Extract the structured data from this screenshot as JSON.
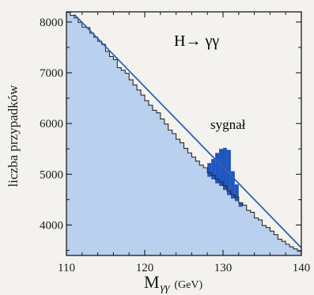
{
  "chart_data": {
    "type": "area",
    "title": "H→ γγ",
    "xlabel": "M",
    "xlabel_subscript": "γγ",
    "xlabel_unit": "(GeV)",
    "ylabel": "liczba przypadków",
    "xlim": [
      110,
      140
    ],
    "ylim": [
      3400,
      8200
    ],
    "x_ticks": [
      110,
      120,
      130,
      140
    ],
    "y_ticks": [
      4000,
      5000,
      6000,
      7000,
      8000
    ],
    "annotation": "sygnał",
    "background_fit": {
      "x": [
        111,
        140
      ],
      "y": [
        8150,
        3550
      ]
    },
    "background": {
      "bin_width": 0.5,
      "x": [
        110.0,
        110.5,
        111.0,
        111.5,
        112.0,
        112.5,
        113.0,
        113.5,
        114.0,
        114.5,
        115.0,
        115.5,
        116.0,
        116.5,
        117.0,
        117.5,
        118.0,
        118.5,
        119.0,
        119.5,
        120.0,
        120.5,
        121.0,
        121.5,
        122.0,
        122.5,
        123.0,
        123.5,
        124.0,
        124.5,
        125.0,
        125.5,
        126.0,
        126.5,
        127.0,
        127.5,
        128.0,
        128.5,
        129.0,
        129.5,
        130.0,
        130.5,
        131.0,
        131.5,
        132.0,
        132.5,
        133.0,
        133.5,
        134.0,
        134.5,
        135.0,
        135.5,
        136.0,
        136.5,
        137.0,
        137.5,
        138.0,
        138.5,
        139.0,
        139.5
      ],
      "y": [
        8190,
        8130,
        8080,
        7990,
        7900,
        7890,
        7780,
        7700,
        7620,
        7560,
        7420,
        7320,
        7260,
        7100,
        7050,
        6990,
        6860,
        6760,
        6660,
        6560,
        6450,
        6360,
        6260,
        6210,
        6090,
        5990,
        5870,
        5800,
        5690,
        5620,
        5510,
        5420,
        5340,
        5260,
        5180,
        5130,
        5030,
        4980,
        4900,
        4850,
        4770,
        4670,
        4600,
        4550,
        4440,
        4390,
        4290,
        4250,
        4140,
        4100,
        3990,
        3950,
        3880,
        3810,
        3720,
        3680,
        3620,
        3570,
        3530,
        3480
      ]
    },
    "signal": {
      "x": [
        128.0,
        128.5,
        129.0,
        129.5,
        130.0,
        130.5,
        131.0,
        131.5,
        132.0
      ],
      "y": [
        5220,
        5300,
        5420,
        5500,
        5520,
        5480,
        5060,
        4800,
        4440
      ]
    },
    "colors": {
      "fill": "#b9d0ee",
      "fit_line": "#2b62b6",
      "signal": "#1f56c0",
      "histogram": "#2a2a2a",
      "frame": "#1a1a1a"
    }
  }
}
